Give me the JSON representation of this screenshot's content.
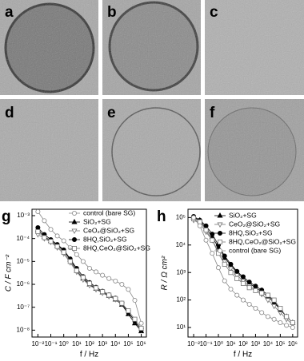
{
  "panels": [
    {
      "label": "a"
    },
    {
      "label": "b"
    },
    {
      "label": "c"
    },
    {
      "label": "d"
    },
    {
      "label": "e"
    },
    {
      "label": "f"
    }
  ],
  "chart_data": [
    {
      "type": "line",
      "label": "g",
      "xlabel": "f / Hz",
      "ylabel": "C / F cm⁻²",
      "log_x": true,
      "log_y": true,
      "x": [
        0.01,
        0.0316,
        0.1,
        0.316,
        1,
        3.16,
        10,
        31.6,
        100,
        316,
        1000,
        3160,
        10000,
        31600,
        100000,
        316000,
        1000000
      ],
      "xlim": [
        0.0035,
        2500000
      ],
      "xticks": [
        {
          "value": 0.01,
          "label": "10⁻²"
        },
        {
          "value": 0.1,
          "label": "10⁻¹"
        },
        {
          "value": 1,
          "label": "10⁰"
        },
        {
          "value": 10,
          "label": "10¹"
        },
        {
          "value": 100,
          "label": "10²"
        },
        {
          "value": 1000,
          "label": "10³"
        },
        {
          "value": 10000,
          "label": "10⁴"
        },
        {
          "value": 100000,
          "label": "10⁵"
        },
        {
          "value": 1000000,
          "label": "10⁶"
        }
      ],
      "ylim": [
        5e-09,
        0.0019
      ],
      "yticks": [
        {
          "value": 1e-08,
          "label": "10⁻⁸"
        },
        {
          "value": 1e-07,
          "label": "10⁻⁷"
        },
        {
          "value": 1e-06,
          "label": "10⁻⁶"
        },
        {
          "value": 1e-05,
          "label": "10⁻⁵"
        },
        {
          "value": 0.0001,
          "label": "10⁻⁴"
        },
        {
          "value": 0.001,
          "label": "10⁻³"
        }
      ],
      "series": [
        {
          "name": "control (bare SG)",
          "color": "#888888",
          "marker": "circle-open",
          "values": [
            0.0015,
            0.0006,
            0.00025,
            0.00013,
            8e-05,
            4e-05,
            2e-05,
            1e-05,
            5e-06,
            3.5e-06,
            2.5e-06,
            1.8e-06,
            1.4e-06,
            1e-06,
            6e-07,
            2e-07,
            2e-08
          ]
        },
        {
          "name": "SiO₂+SG",
          "color": "#000000",
          "marker": "triangle-filled",
          "values": [
            0.00025,
            0.00012,
            8e-05,
            5e-05,
            3e-05,
            1.2e-05,
            4e-06,
            1.8e-06,
            1e-06,
            6.5e-07,
            4.5e-07,
            3.2e-07,
            2.2e-07,
            1.3e-07,
            5e-08,
            2e-08,
            9e-09
          ]
        },
        {
          "name": "CeO₂@SiO₂+SG",
          "color": "#777777",
          "marker": "triangle-down-open",
          "values": [
            0.00015,
            0.0001,
            7e-05,
            4e-05,
            2.2e-05,
            9e-06,
            3.5e-06,
            1.6e-06,
            9e-07,
            6e-07,
            4.2e-07,
            3e-07,
            2.2e-07,
            1.4e-07,
            6e-08,
            2.5e-08,
            1e-08
          ]
        },
        {
          "name": "8HQ,SiO₂+SG",
          "color": "#000000",
          "marker": "circle-filled",
          "values": [
            0.0003,
            0.00015,
            9e-05,
            5.5e-05,
            3.2e-05,
            1.3e-05,
            5e-06,
            2.2e-06,
            1.2e-06,
            7.5e-07,
            5e-07,
            3.5e-07,
            2.5e-07,
            1.5e-07,
            6e-08,
            2.5e-08,
            1e-08
          ]
        },
        {
          "name": "8HQ,CeO₂@SiO₂+SG",
          "color": "#777777",
          "marker": "square-open",
          "values": [
            0.0002,
            0.00011,
            7.5e-05,
            4.5e-05,
            2.5e-05,
            1e-05,
            4e-06,
            2e-06,
            1.1e-06,
            7e-07,
            4.8e-07,
            3.4e-07,
            2.4e-07,
            1.5e-07,
            7e-08,
            3e-08,
            1.2e-08
          ]
        }
      ]
    },
    {
      "type": "line",
      "label": "h",
      "xlabel": "f / Hz",
      "ylabel": "R / Ω cm²",
      "log_x": true,
      "log_y": true,
      "x": [
        0.01,
        0.0316,
        0.1,
        0.316,
        1,
        3.16,
        10,
        31.6,
        100,
        316,
        1000,
        3160,
        10000,
        31600,
        100000,
        316000,
        1000000
      ],
      "xlim": [
        0.0035,
        2500000
      ],
      "xticks": [
        {
          "value": 0.01,
          "label": "10⁻²"
        },
        {
          "value": 0.1,
          "label": "10⁻¹"
        },
        {
          "value": 1,
          "label": "10⁰"
        },
        {
          "value": 10,
          "label": "10¹"
        },
        {
          "value": 100,
          "label": "10²"
        },
        {
          "value": 1000,
          "label": "10³"
        },
        {
          "value": 10000,
          "label": "10⁴"
        },
        {
          "value": 100000,
          "label": "10⁵"
        },
        {
          "value": 1000000,
          "label": "10⁶"
        }
      ],
      "ylim": [
        4.5,
        200000
      ],
      "yticks": [
        {
          "value": 10,
          "label": "10¹"
        },
        {
          "value": 100,
          "label": "10²"
        },
        {
          "value": 1000,
          "label": "10³"
        },
        {
          "value": 10000,
          "label": "10⁴"
        },
        {
          "value": 100000,
          "label": "10⁵"
        }
      ],
      "series": [
        {
          "name": "SiO₂+SG",
          "color": "#000000",
          "marker": "triangle-filled",
          "values": [
            100000,
            80000,
            40000,
            20000,
            8000,
            3500,
            1800,
            1000,
            600,
            400,
            280,
            200,
            130,
            80,
            45,
            25,
            15
          ]
        },
        {
          "name": "CeO₂@SiO₂+SG",
          "color": "#777777",
          "marker": "triangle-down-open",
          "values": [
            80000,
            60000,
            30000,
            15000,
            6000,
            2500,
            1400,
            800,
            500,
            330,
            230,
            160,
            100,
            60,
            35,
            20,
            13
          ]
        },
        {
          "name": "8HQ,SiO₂+SG",
          "color": "#000000",
          "marker": "circle-filled",
          "values": [
            110000,
            80000,
            50000,
            25000,
            10000,
            4000,
            2000,
            1100,
            700,
            450,
            320,
            230,
            150,
            90,
            45,
            25,
            15
          ]
        },
        {
          "name": "8HQ,CeO₂@SiO₂+SG",
          "color": "#777777",
          "marker": "square-open",
          "values": [
            90000,
            70000,
            35000,
            15000,
            5000,
            2000,
            1000,
            600,
            400,
            280,
            220,
            180,
            150,
            100,
            50,
            25,
            15
          ]
        },
        {
          "name": "control (bare SG)",
          "color": "#888888",
          "marker": "circle-open",
          "values": [
            100000,
            50000,
            15000,
            5000,
            1500,
            500,
            250,
            150,
            100,
            70,
            50,
            35,
            25,
            20,
            15,
            12,
            10
          ]
        }
      ]
    }
  ]
}
